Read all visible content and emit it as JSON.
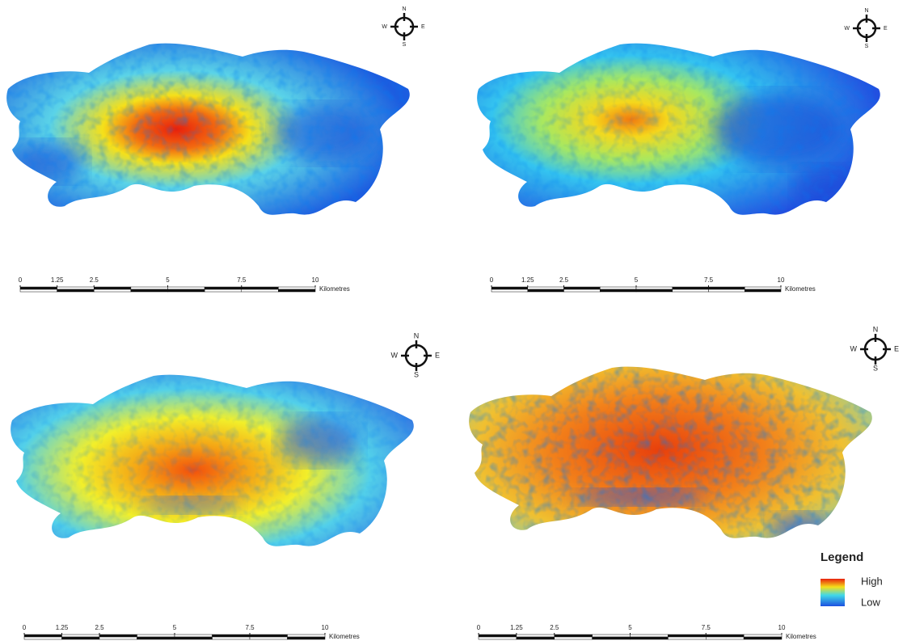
{
  "panels": [
    {
      "compass": {
        "n": "N",
        "e": "E",
        "s": "S",
        "w": "W"
      },
      "scale": {
        "ticks": [
          0,
          1.25,
          2.5,
          5,
          7.5,
          10
        ],
        "unit": "Kilometres"
      }
    },
    {
      "compass": {
        "n": "N",
        "e": "E",
        "s": "S",
        "w": "W"
      },
      "scale": {
        "ticks": [
          0,
          1.25,
          2.5,
          5,
          7.5,
          10
        ],
        "unit": "Kilometres"
      }
    },
    {
      "compass": {
        "n": "N",
        "e": "E",
        "s": "S",
        "w": "W"
      },
      "scale": {
        "ticks": [
          0,
          1.25,
          2.5,
          5,
          7.5,
          10
        ],
        "unit": "Kilometres"
      }
    },
    {
      "compass": {
        "n": "N",
        "e": "E",
        "s": "S",
        "w": "W"
      },
      "scale": {
        "ticks": [
          0,
          1.25,
          2.5,
          5,
          7.5,
          10
        ],
        "unit": "Kilometres"
      }
    }
  ],
  "legend": {
    "title": "Legend",
    "high": "High",
    "low": "Low"
  }
}
